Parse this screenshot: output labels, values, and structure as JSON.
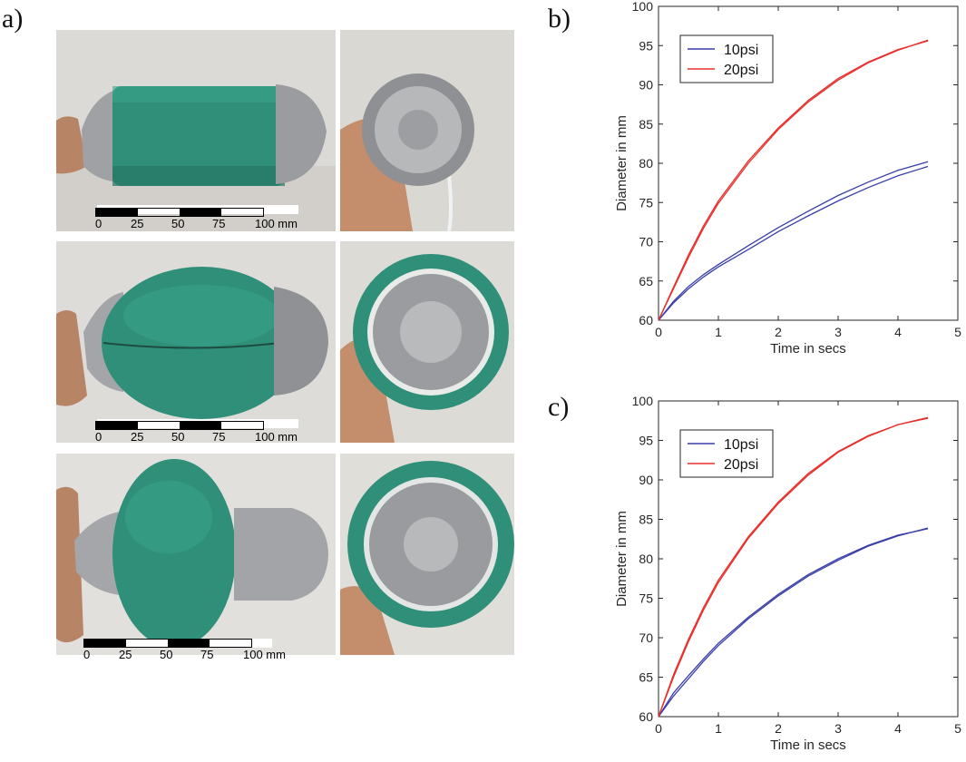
{
  "figure": {
    "panel_labels": [
      "a)",
      "b)",
      "c)"
    ]
  },
  "scale_bar": {
    "ticks": [
      "0",
      "25",
      "50",
      "75",
      "100 mm"
    ]
  },
  "colors": {
    "series_10psi": "#3a3fa8",
    "series_20psi": "#e8302c",
    "balloon_green": "#2f8f78",
    "duct_tape": "#a7a9ab"
  },
  "chart_data": [
    {
      "type": "line",
      "panel": "b)",
      "xlabel": "Time in secs",
      "ylabel": "Diameter in mm",
      "xlim": [
        0,
        5
      ],
      "ylim": [
        60,
        100
      ],
      "xticks": [
        "0",
        "1",
        "2",
        "3",
        "4",
        "5"
      ],
      "yticks": [
        "60",
        "65",
        "70",
        "75",
        "80",
        "85",
        "90",
        "95",
        "100"
      ],
      "legend": {
        "placement": "top-left",
        "entries": [
          "10psi",
          "20psi"
        ]
      },
      "series": [
        {
          "name": "10psi",
          "x": [
            0,
            0.25,
            0.5,
            0.75,
            1,
            1.5,
            2,
            2.5,
            3,
            3.5,
            4,
            4.5
          ],
          "y": [
            60,
            62.2,
            64.0,
            65.5,
            66.8,
            69.0,
            71.3,
            73.3,
            75.2,
            76.9,
            78.4,
            79.6
          ]
        },
        {
          "name": "10psi",
          "x": [
            0,
            0.25,
            0.5,
            0.75,
            1,
            1.5,
            2,
            2.5,
            3,
            3.5,
            4,
            4.5
          ],
          "y": [
            60,
            62.4,
            64.3,
            65.8,
            67.1,
            69.5,
            71.8,
            73.9,
            75.9,
            77.6,
            79.1,
            80.2
          ]
        },
        {
          "name": "20psi",
          "x": [
            0,
            0.25,
            0.5,
            0.75,
            1,
            1.5,
            2,
            2.5,
            3,
            3.5,
            4,
            4.5
          ],
          "y": [
            60,
            64.2,
            68.3,
            72.0,
            75.2,
            80.3,
            84.5,
            88.0,
            90.8,
            92.9,
            94.5,
            95.6
          ]
        },
        {
          "name": "20psi",
          "x": [
            0,
            0.25,
            0.5,
            0.75,
            1,
            1.5,
            2,
            2.5,
            3,
            3.5,
            4,
            4.5
          ],
          "y": [
            60,
            64.0,
            68.0,
            71.7,
            74.9,
            80.0,
            84.3,
            87.8,
            90.6,
            92.8,
            94.4,
            95.7
          ]
        }
      ]
    },
    {
      "type": "line",
      "panel": "c)",
      "xlabel": "Time in secs",
      "ylabel": "Diameter in mm",
      "xlim": [
        0,
        5
      ],
      "ylim": [
        60,
        100
      ],
      "xticks": [
        "0",
        "1",
        "2",
        "3",
        "4",
        "5"
      ],
      "yticks": [
        "60",
        "65",
        "70",
        "75",
        "80",
        "85",
        "90",
        "95",
        "100"
      ],
      "legend": {
        "placement": "top-left",
        "entries": [
          "10psi",
          "20psi"
        ]
      },
      "series": [
        {
          "name": "10psi",
          "x": [
            0,
            0.25,
            0.5,
            0.75,
            1,
            1.5,
            2,
            2.5,
            3,
            3.5,
            4,
            4.5
          ],
          "y": [
            60,
            63.0,
            65.2,
            67.3,
            69.3,
            72.6,
            75.5,
            78.0,
            80.0,
            81.7,
            83.0,
            83.8
          ]
        },
        {
          "name": "10psi",
          "x": [
            0,
            0.25,
            0.5,
            0.75,
            1,
            1.5,
            2,
            2.5,
            3,
            3.5,
            4,
            4.5
          ],
          "y": [
            60,
            62.6,
            64.8,
            67.0,
            69.0,
            72.4,
            75.3,
            77.8,
            79.8,
            81.6,
            82.9,
            83.9
          ]
        },
        {
          "name": "20psi",
          "x": [
            0,
            0.25,
            0.5,
            0.75,
            1,
            1.5,
            2,
            2.5,
            3,
            3.5,
            4,
            4.5
          ],
          "y": [
            60,
            65.3,
            69.8,
            73.8,
            77.3,
            82.8,
            87.2,
            90.8,
            93.6,
            95.6,
            97.0,
            97.9
          ]
        },
        {
          "name": "20psi",
          "x": [
            0,
            0.25,
            0.5,
            0.75,
            1,
            1.5,
            2,
            2.5,
            3,
            3.5,
            4,
            4.5
          ],
          "y": [
            60,
            65.0,
            69.5,
            73.5,
            77.0,
            82.6,
            87.0,
            90.6,
            93.5,
            95.5,
            97.0,
            97.8
          ]
        }
      ]
    }
  ]
}
